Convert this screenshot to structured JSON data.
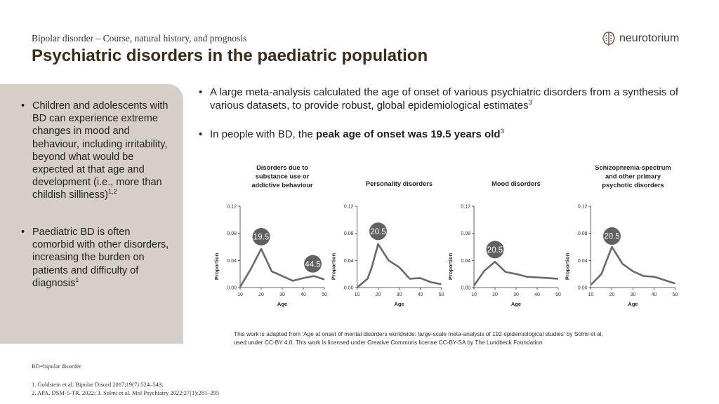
{
  "header": {
    "breadcrumb": "Bipolar disorder – Course, natural history, and prognosis",
    "title": "Psychiatric disorders in the paediatric population"
  },
  "logo": {
    "text": "neurotorium",
    "icon": "brain-logo-icon"
  },
  "left_panel": {
    "bullets": [
      {
        "text": "Children and adolescents with BD can experience extreme changes in mood and behaviour, including irritability, beyond what would be expected at that age and development (i.e., more than childish silliness)",
        "sup": "1,2"
      },
      {
        "text": "Paediatric BD is often comorbid with other disorders, increasing the burden on patients and difficulty of diagnosis",
        "sup": "1"
      }
    ]
  },
  "main_bullets": [
    {
      "text": "A large meta-analysis calculated the age of onset of various psychiatric disorders from a synthesis of various datasets, to provide robust, global epidemiological estimates",
      "sup": "3"
    },
    {
      "pre": "In people with BD, the ",
      "bold": "peak age of onset was 19.5 years old",
      "sup": "3"
    }
  ],
  "chart_data": [
    {
      "type": "line",
      "title": "Disorders due to substance use or addictive behaviour",
      "xlabel": "Age",
      "ylabel": "Proportion",
      "xlim": [
        10,
        50
      ],
      "ylim": [
        0,
        0.12
      ],
      "xticks": [
        "10",
        "20",
        "30",
        "40",
        "50"
      ],
      "yticks": [
        "0.00",
        "0.04",
        "0.08",
        "0.12"
      ],
      "x": [
        10,
        15,
        20,
        25,
        30,
        35,
        40,
        45,
        50
      ],
      "y": [
        0.001,
        0.027,
        0.057,
        0.024,
        0.017,
        0.01,
        0.014,
        0.017,
        0.012
      ],
      "annotations": [
        {
          "label": "19.5",
          "x": 20,
          "y": 0.075
        },
        {
          "label": "44.5",
          "x": 44.5,
          "y": 0.035
        }
      ]
    },
    {
      "type": "line",
      "title": "Personality disorders",
      "xlabel": "Age",
      "ylabel": "Proportion",
      "xlim": [
        10,
        50
      ],
      "ylim": [
        0,
        0.12
      ],
      "xticks": [
        "10",
        "20",
        "30",
        "40",
        "50"
      ],
      "yticks": [
        "0.00",
        "0.04",
        "0.08",
        "0.12"
      ],
      "x": [
        10,
        15,
        17,
        20,
        25,
        30,
        35,
        40,
        45,
        50
      ],
      "y": [
        0.0,
        0.013,
        0.03,
        0.064,
        0.04,
        0.03,
        0.013,
        0.014,
        0.008,
        0.005
      ],
      "annotations": [
        {
          "label": "20.5",
          "x": 20,
          "y": 0.083
        }
      ]
    },
    {
      "type": "line",
      "title": "Mood disorders",
      "xlabel": "Age",
      "ylabel": "Proportion",
      "xlim": [
        10,
        50
      ],
      "ylim": [
        0,
        0.12
      ],
      "xticks": [
        "10",
        "20",
        "30",
        "40",
        "50"
      ],
      "yticks": [
        "0.00",
        "0.04",
        "0.08",
        "0.12"
      ],
      "x": [
        10,
        15,
        20,
        25,
        30,
        35,
        40,
        45,
        50
      ],
      "y": [
        0.003,
        0.025,
        0.038,
        0.023,
        0.02,
        0.016,
        0.015,
        0.014,
        0.013
      ],
      "annotations": [
        {
          "label": "20.5",
          "x": 20,
          "y": 0.056
        }
      ]
    },
    {
      "type": "line",
      "title": "Schizophrenia-spectrum and other primary psychotic disorders",
      "xlabel": "Age",
      "ylabel": "Proportion",
      "xlim": [
        10,
        50
      ],
      "ylim": [
        0,
        0.12
      ],
      "xticks": [
        "10",
        "20",
        "30",
        "40",
        "50"
      ],
      "yticks": [
        "0.00",
        "0.04",
        "0.08",
        "0.12"
      ],
      "x": [
        10,
        15,
        20,
        25,
        30,
        35,
        40,
        45,
        50
      ],
      "y": [
        0.004,
        0.02,
        0.06,
        0.035,
        0.024,
        0.017,
        0.016,
        0.011,
        0.006
      ],
      "annotations": [
        {
          "label": "20.5",
          "x": 20,
          "y": 0.076
        }
      ]
    }
  ],
  "credit": {
    "line1": "This work is adapted from ‘Age at onset of mental disorders worldwide: large-scale meta-analysis of 192 epidemiological studies’ by Solmi et al,",
    "line2": "used under CC-BY 4.0. This work is licensed under Creative Commons license CC-BY-SA by The Lundbeck Foundation"
  },
  "footer": {
    "abbreviation": "BD=bipolar disorder",
    "references": [
      "1. Goldstein et al. Bipolar Disord 2017;19(7):524–543;",
      "2. APA. DSM-5-TR. 2022; 3. Solmi et al. Mol Psychiatry 2022;27(1):281–295"
    ]
  },
  "colors": {
    "title": "#3d2b1a",
    "panel": "#d6cfc8",
    "line": "#6a6a6a",
    "bubble": "#616161"
  }
}
